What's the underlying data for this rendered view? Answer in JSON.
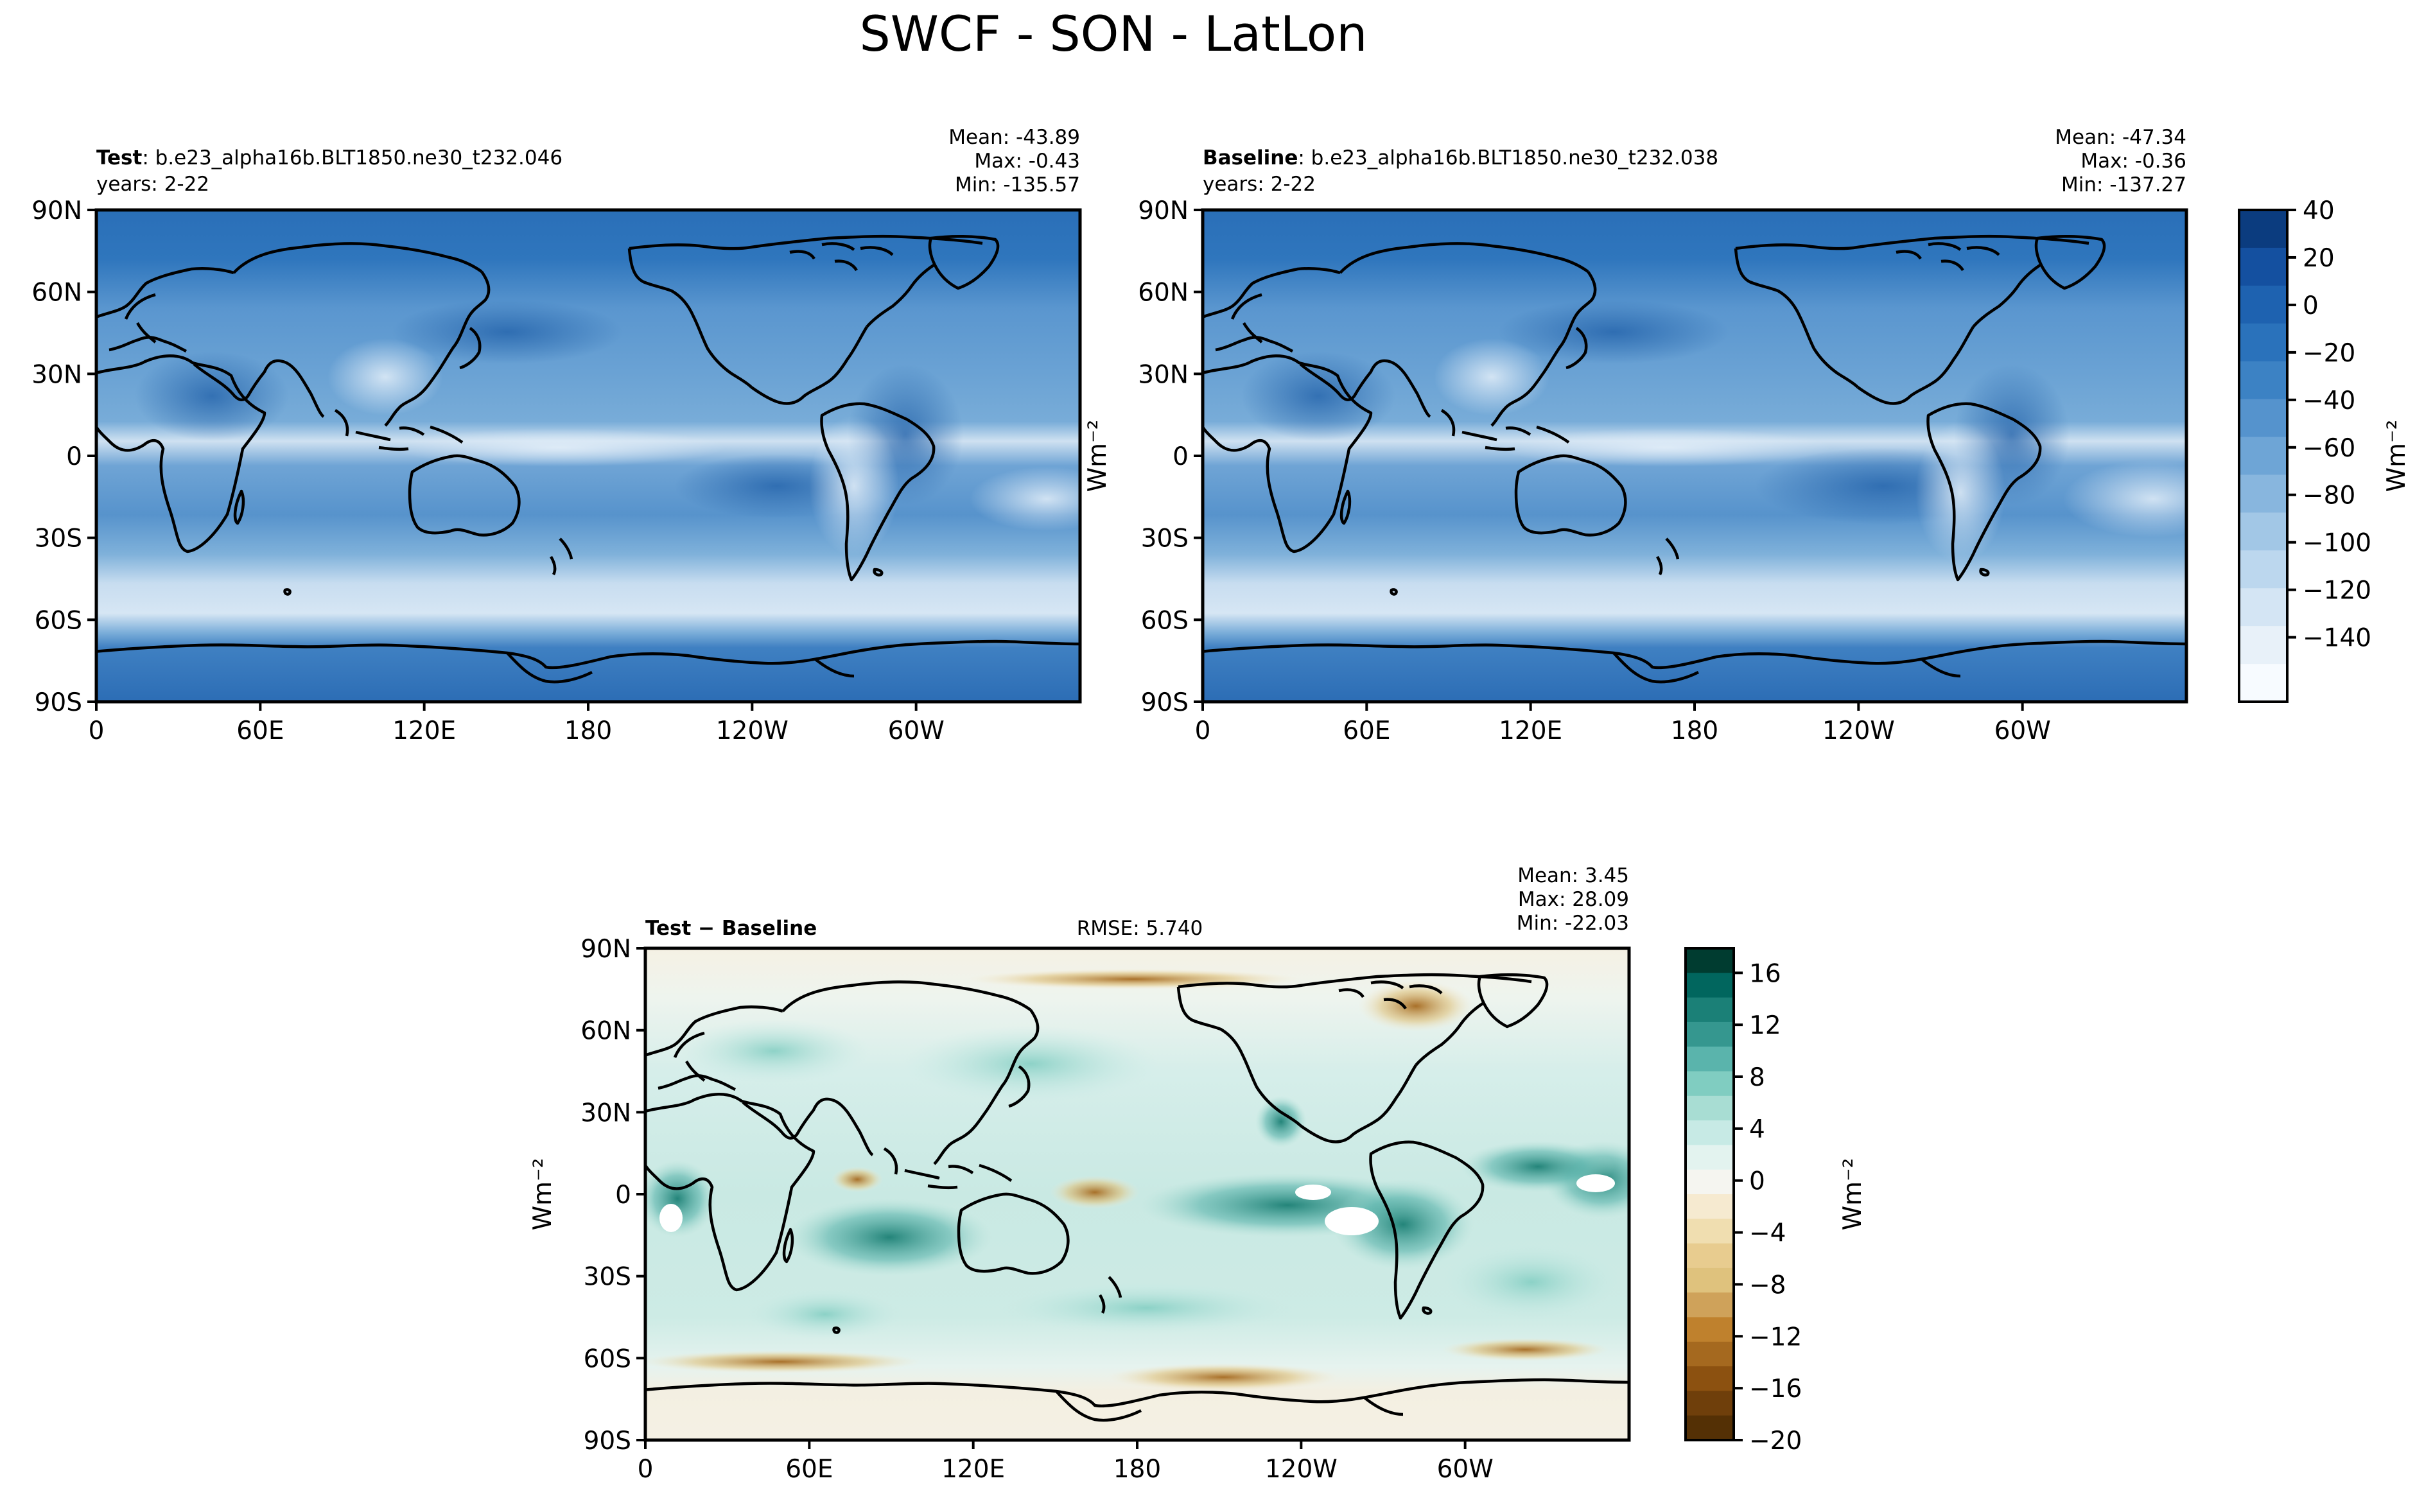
{
  "title": "SWCF - SON - LatLon",
  "panels": {
    "test": {
      "label_bold": "Test",
      "label_rest": ": b.e23_alpha16b.BLT1850.ne30_t232.046",
      "years": "years: 2-22",
      "mean": "Mean: -43.89",
      "max": "Max: -0.43",
      "min": "Min: -135.57"
    },
    "baseline": {
      "label_bold": "Baseline",
      "label_rest": ": b.e23_alpha16b.BLT1850.ne30_t232.038",
      "years": "years: 2-22",
      "mean": "Mean: -47.34",
      "max": "Max: -0.36",
      "min": "Min: -137.27"
    },
    "diff": {
      "label_bold": "Test − Baseline",
      "rmse": "RMSE: 5.740",
      "mean": "Mean:  3.45",
      "max": "Max: 28.09",
      "min": "Min: -22.03"
    }
  },
  "axes": {
    "lat_ticks": [
      "90N",
      "60N",
      "30N",
      "0",
      "30S",
      "60S",
      "90S"
    ],
    "lon_ticks": [
      "0",
      "60E",
      "120E",
      "180",
      "120W",
      "60W"
    ]
  },
  "colorbars": {
    "top": {
      "label": "Wm⁻²",
      "ticks": [
        "40",
        "20",
        "0",
        "−20",
        "−40",
        "−60",
        "−80",
        "−100",
        "−120",
        "−140"
      ],
      "colors": [
        "#0b3c7f",
        "#1450a0",
        "#1e62b0",
        "#2a72bb",
        "#3c82c4",
        "#5593cd",
        "#6ea5d6",
        "#88b6de",
        "#a2c7e6",
        "#bcd7ee",
        "#d4e5f4",
        "#e8f1f9",
        "#f7fbff"
      ]
    },
    "bottom": {
      "label": "Wm⁻²",
      "ticks": [
        "16",
        "12",
        "8",
        "4",
        "0",
        "−4",
        "−8",
        "−12",
        "−16",
        "−20"
      ],
      "colors": [
        "#003c30",
        "#01665e",
        "#1b8077",
        "#35978f",
        "#5ab4ac",
        "#80cdc1",
        "#a8ddd3",
        "#c7eae5",
        "#e3f3ef",
        "#f5f5f0",
        "#f6ead0",
        "#f0deb0",
        "#e8cc8f",
        "#dfc27d",
        "#cfa25a",
        "#bf812d",
        "#a5691f",
        "#8c5110",
        "#6f3f0b",
        "#543005"
      ]
    }
  }
}
